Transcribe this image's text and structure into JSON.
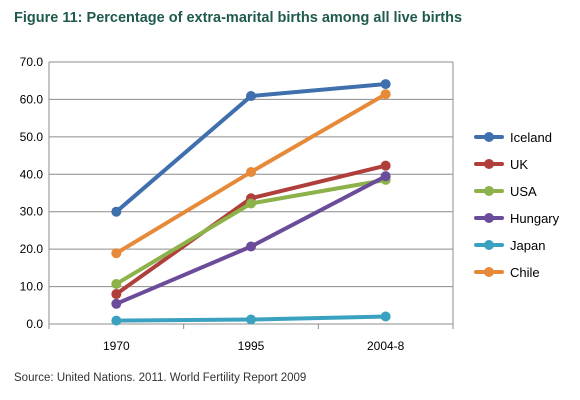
{
  "figure": {
    "title": "Figure 11: Percentage of extra-marital births among all live births",
    "source": "Source: United Nations. 2011. World Fertility Report 2009"
  },
  "chart_data": {
    "type": "line",
    "categories": [
      "1970",
      "1995",
      "2004-8"
    ],
    "ylim": [
      0,
      70
    ],
    "yticks": [
      0,
      10,
      20,
      30,
      40,
      50,
      60,
      70
    ],
    "ytick_labels": [
      "0.0",
      "10.0",
      "20.0",
      "30.0",
      "40.0",
      "50.0",
      "60.0",
      "70.0"
    ],
    "grid": "horizontal",
    "legend_position": "right",
    "series": [
      {
        "name": "Iceland",
        "color": "#3f6fad",
        "values": [
          30.0,
          60.9,
          64.1
        ]
      },
      {
        "name": "UK",
        "color": "#b03e3a",
        "values": [
          8.0,
          33.6,
          42.3
        ]
      },
      {
        "name": "USA",
        "color": "#8db24a",
        "values": [
          10.7,
          32.2,
          38.5
        ]
      },
      {
        "name": "Hungary",
        "color": "#6b4c9a",
        "values": [
          5.4,
          20.7,
          39.5
        ]
      },
      {
        "name": "Japan",
        "color": "#3aa2c0",
        "values": [
          0.9,
          1.2,
          2.0
        ]
      },
      {
        "name": "Chile",
        "color": "#e68a3a",
        "values": [
          18.9,
          40.6,
          61.4
        ]
      }
    ]
  }
}
